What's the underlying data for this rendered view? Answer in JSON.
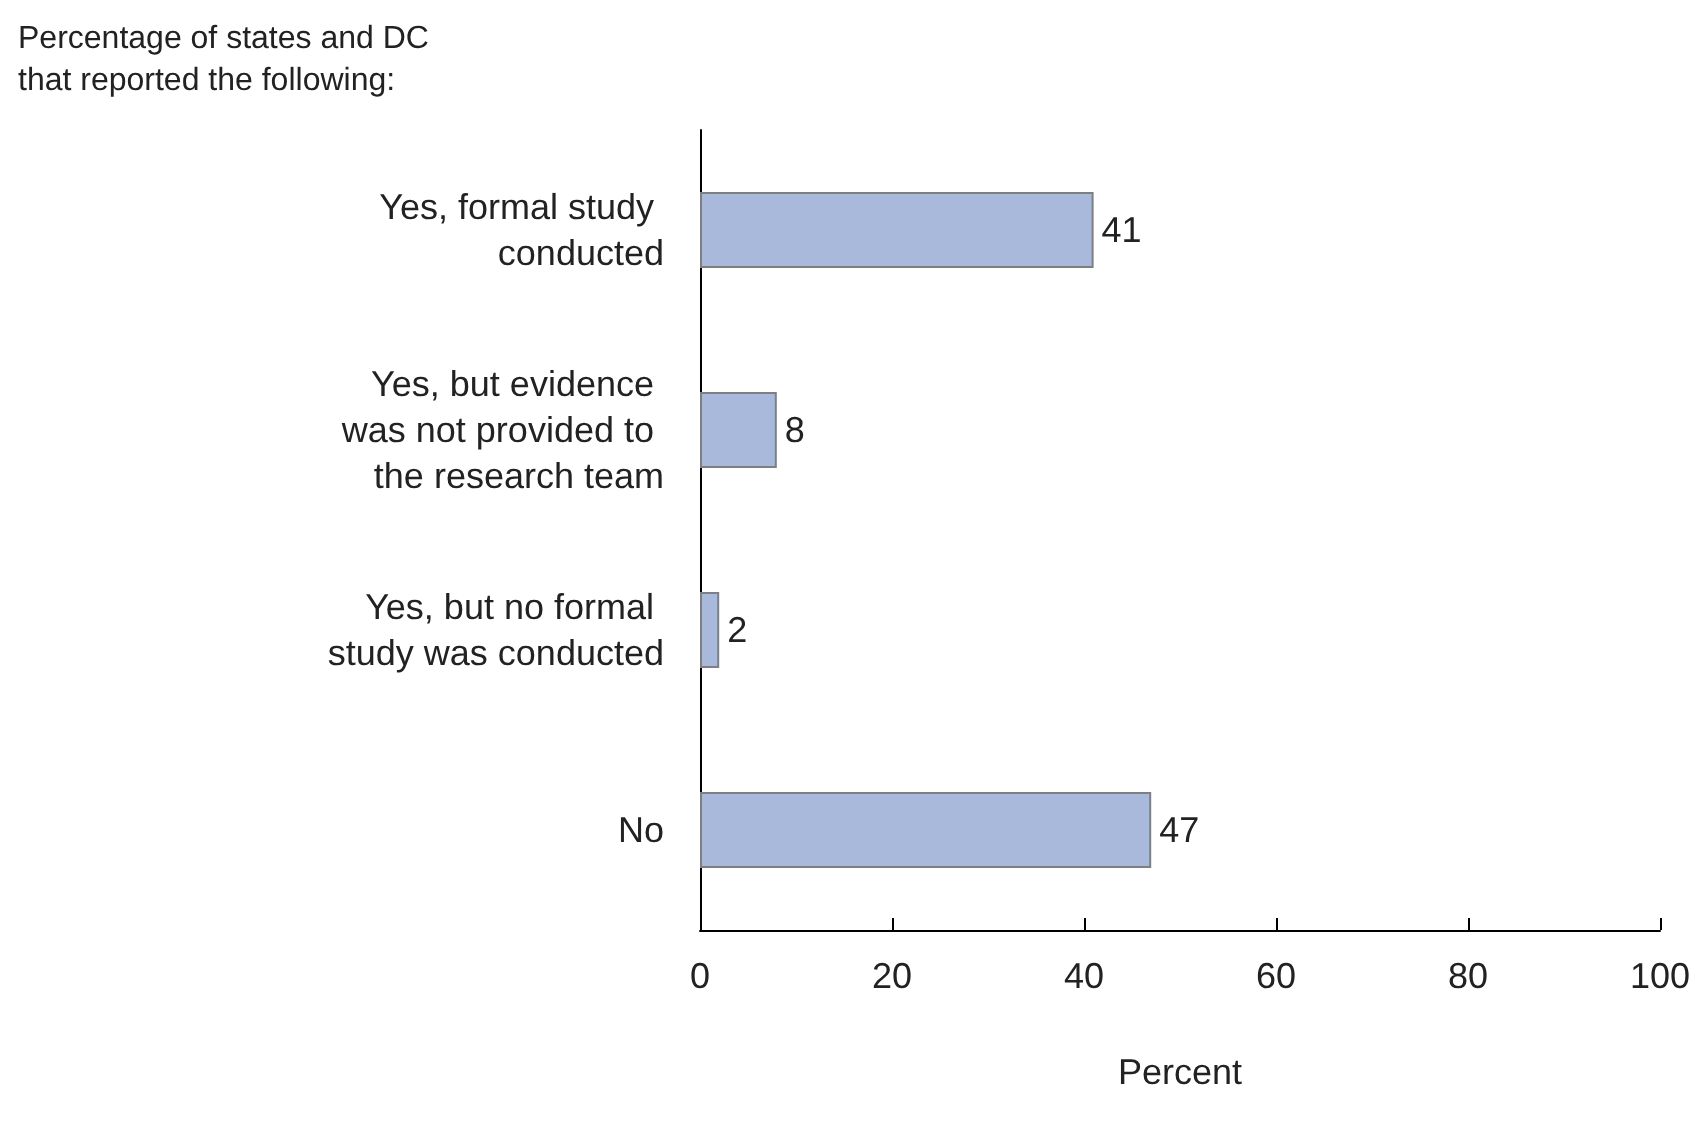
{
  "chart_data": {
    "type": "bar",
    "orientation": "horizontal",
    "title": "Percentage of states and DC that reported the following:",
    "xlabel": "Percent",
    "categories": [
      "Yes, formal study conducted",
      "Yes, but evidence was not provided to the research team",
      "Yes, but no formal study was conducted",
      "No"
    ],
    "values": [
      41,
      8,
      2,
      47
    ],
    "color": "#a9b9dc",
    "xlim": [
      0,
      100
    ],
    "xticks": [
      0,
      20,
      40,
      60,
      80,
      100
    ],
    "grid": false,
    "data_labels": true
  }
}
